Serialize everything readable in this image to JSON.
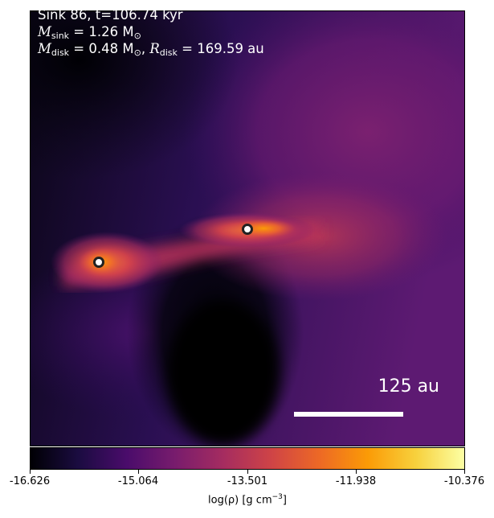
{
  "annotation": {
    "line1": "Sink 86, t=106.74 kyr",
    "msink_symbol": "M",
    "msink_sub": "sink",
    "msink_value": " = 1.26 M",
    "msun_sub": "⊙",
    "mdisk_symbol": "M",
    "mdisk_sub": "disk",
    "mdisk_value": " = 0.48 M",
    "rdisk_symbol": "R",
    "rdisk_sub": "disk",
    "rdisk_value": " = 169.59 au"
  },
  "scale_bar": {
    "label": "125 au"
  },
  "colorbar": {
    "ticks": [
      "-16.626",
      "-15.064",
      "-13.501",
      "-11.938",
      "-10.376"
    ],
    "label_main": "log(ρ) [g cm",
    "label_sup": "−3",
    "label_end": "]"
  },
  "colors": {
    "cmap": [
      "#000004",
      "#1b0c41",
      "#4a0c6b",
      "#781c6d",
      "#a52c60",
      "#cf4446",
      "#ed6925",
      "#fb9b06",
      "#f7d13d",
      "#fcffa4"
    ]
  }
}
